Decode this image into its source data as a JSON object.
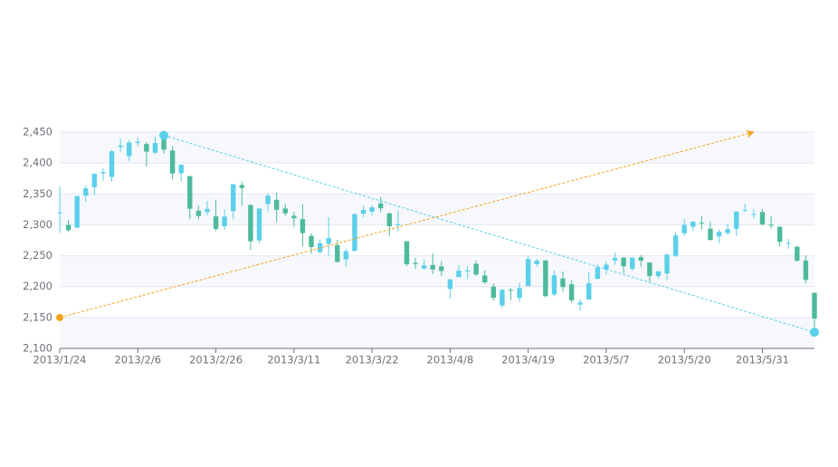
{
  "chart_data": {
    "type": "candlestick",
    "categories": [
      "2013/1/24",
      null,
      null,
      null,
      null,
      null,
      null,
      null,
      null,
      "2013/2/6",
      null,
      null,
      null,
      null,
      null,
      null,
      null,
      null,
      "2013/2/26",
      null,
      null,
      null,
      null,
      null,
      null,
      null,
      null,
      "2013/3/11",
      null,
      null,
      null,
      null,
      null,
      null,
      null,
      null,
      "2013/3/22",
      null,
      null,
      null,
      null,
      null,
      null,
      null,
      null,
      "2013/4/8",
      null,
      null,
      null,
      null,
      null,
      null,
      null,
      null,
      "2013/4/19",
      null,
      null,
      null,
      null,
      null,
      null,
      null,
      null,
      "2013/5/7",
      null,
      null,
      null,
      null,
      null,
      null,
      null,
      null,
      "2013/5/20",
      null,
      null,
      null,
      null,
      null,
      null,
      null,
      null,
      "2013/5/31",
      null,
      null,
      null,
      null,
      null,
      null
    ],
    "values": [
      [
        2320.26,
        2320.26,
        2287.3,
        2362.94
      ],
      [
        2300,
        2291.3,
        2288.26,
        2308.38
      ],
      [
        2295.35,
        2346.5,
        2295.35,
        2346.92
      ],
      [
        2347.22,
        2358.98,
        2337.35,
        2363.8
      ],
      [
        2360.75,
        2382.48,
        2347.89,
        2383.76
      ],
      [
        2383.43,
        2385.42,
        2371.23,
        2391.82
      ],
      [
        2377.41,
        2419.02,
        2369.57,
        2421.15
      ],
      [
        2425.92,
        2428.15,
        2417.58,
        2440.38
      ],
      [
        2411,
        2433.13,
        2403.3,
        2437.42
      ],
      [
        2432.68,
        2434.48,
        2427.7,
        2441.73
      ],
      [
        2430.69,
        2418.53,
        2394.22,
        2433.89
      ],
      [
        2416.62,
        2432.4,
        2414.4,
        2443.03
      ],
      [
        2441.91,
        2421.56,
        2415.43,
        2444.8
      ],
      [
        2420.26,
        2382.91,
        2373.53,
        2427.07
      ],
      [
        2383.49,
        2397.18,
        2370.61,
        2397.94
      ],
      [
        2378.82,
        2325.95,
        2309.17,
        2378.82
      ],
      [
        2322.94,
        2314.16,
        2308.76,
        2330.88
      ],
      [
        2320.62,
        2325.82,
        2315.01,
        2338.78
      ],
      [
        2313.74,
        2293.34,
        2289.89,
        2340.71
      ],
      [
        2297.77,
        2313.22,
        2292.03,
        2324.63
      ],
      [
        2322.32,
        2365.59,
        2308.92,
        2366.16
      ],
      [
        2364.54,
        2359.51,
        2330.86,
        2369.65
      ],
      [
        2332.08,
        2273.4,
        2259.25,
        2333.54
      ],
      [
        2274.81,
        2326.31,
        2270.1,
        2328.14
      ],
      [
        2333.61,
        2347.18,
        2321.6,
        2351.44
      ],
      [
        2340.44,
        2324.29,
        2304.27,
        2352.02
      ],
      [
        2326.42,
        2318.61,
        2314.59,
        2333.67
      ],
      [
        2314.68,
        2310.59,
        2296.58,
        2320.96
      ],
      [
        2309.16,
        2286.6,
        2264.83,
        2333.29
      ],
      [
        2282.17,
        2263.97,
        2253.25,
        2286.33
      ],
      [
        2255.77,
        2270.28,
        2253.31,
        2276.22
      ],
      [
        2269.31,
        2278.4,
        2250,
        2312.08
      ],
      [
        2267.29,
        2240.02,
        2239.21,
        2276.05
      ],
      [
        2244.26,
        2257.43,
        2232.02,
        2261.31
      ],
      [
        2257.74,
        2317.37,
        2257.42,
        2317.86
      ],
      [
        2318.21,
        2324.24,
        2311.6,
        2330.81
      ],
      [
        2321.4,
        2328.28,
        2314.97,
        2332
      ],
      [
        2334.74,
        2326.72,
        2319.91,
        2344.89
      ],
      [
        2318.58,
        2297.67,
        2281.12,
        2319.99
      ],
      [
        2299.38,
        2301.26,
        2289,
        2323.48
      ],
      [
        2273.55,
        2236.3,
        2232.91,
        2273.55
      ],
      [
        2238.49,
        2236.62,
        2228.81,
        2246.87
      ],
      [
        2229.46,
        2234.4,
        2227.31,
        2243.95
      ],
      [
        2234.9,
        2227.74,
        2220.44,
        2253.42
      ],
      [
        2232.69,
        2225.29,
        2217.25,
        2241.34
      ],
      [
        2196.24,
        2211.59,
        2180.67,
        2212.59
      ],
      [
        2215.47,
        2225.77,
        2215.47,
        2234.73
      ],
      [
        2224.93,
        2226.13,
        2212.56,
        2233.04
      ],
      [
        2236.98,
        2219.55,
        2217.26,
        2242.48
      ],
      [
        2218.09,
        2206.78,
        2204.44,
        2226.26
      ],
      [
        2199.91,
        2181.94,
        2177.39,
        2204.99
      ],
      [
        2169.63,
        2194.85,
        2165.78,
        2196.43
      ],
      [
        2195.03,
        2193.8,
        2178.47,
        2197.51
      ],
      [
        2181.82,
        2197.6,
        2175.44,
        2206.03
      ],
      [
        2201.12,
        2244.64,
        2200.58,
        2250.11
      ],
      [
        2236.4,
        2242.17,
        2232.26,
        2245.12
      ],
      [
        2242.62,
        2184.54,
        2182.81,
        2242.62
      ],
      [
        2187.35,
        2218.32,
        2184.11,
        2226.12
      ],
      [
        2213.19,
        2199.31,
        2191.85,
        2224.63
      ],
      [
        2203.89,
        2177.91,
        2173.86,
        2210.58
      ],
      [
        2170.78,
        2174.12,
        2161.14,
        2179.65
      ],
      [
        2179.05,
        2205.5,
        2179.05,
        2222.81
      ],
      [
        2212.5,
        2231.17,
        2212.5,
        2236.07
      ],
      [
        2227.86,
        2235.57,
        2219.44,
        2240.26
      ],
      [
        2242.39,
        2246.3,
        2235.42,
        2255.21
      ],
      [
        2246.96,
        2232.97,
        2221.38,
        2247.86
      ],
      [
        2228.82,
        2246.83,
        2225.81,
        2247.67
      ],
      [
        2247.68,
        2241.92,
        2231.36,
        2250.85
      ],
      [
        2238.9,
        2217.01,
        2205.87,
        2239.93
      ],
      [
        2217.09,
        2224.8,
        2213.58,
        2225.19
      ],
      [
        2221.34,
        2251.81,
        2210.77,
        2252.87
      ],
      [
        2249.81,
        2282.87,
        2248.41,
        2288.09
      ],
      [
        2286.33,
        2299.99,
        2281.9,
        2309.39
      ],
      [
        2297.11,
        2305.11,
        2290.12,
        2305.3
      ],
      [
        2303.75,
        2302.4,
        2292.43,
        2314.18
      ],
      [
        2293.81,
        2275.67,
        2274.1,
        2304.95
      ],
      [
        2281.45,
        2288.53,
        2270.25,
        2292.59
      ],
      [
        2286.66,
        2293.08,
        2283.94,
        2301.7
      ],
      [
        2293.4,
        2321.32,
        2281.47,
        2322.1
      ],
      [
        2323.54,
        2324.02,
        2321.17,
        2334.33
      ],
      [
        2316.25,
        2317.75,
        2310.49,
        2325.72
      ],
      [
        2320.74,
        2300.59,
        2299.37,
        2325.53
      ],
      [
        2300.21,
        2299.25,
        2294.11,
        2313.43
      ],
      [
        2297.1,
        2272.42,
        2264.76,
        2297.1
      ],
      [
        2270.71,
        2270.93,
        2260.87,
        2276.86
      ],
      [
        2264.43,
        2242.11,
        2240.07,
        2266.69
      ],
      [
        2242.26,
        2210.9,
        2205.07,
        2250.63
      ],
      [
        2190.1,
        2148.35,
        2126.22,
        2190.1
      ]
    ],
    "up_color": "#5ad0ea",
    "down_color": "#4dba9c",
    "ylim": [
      2100,
      2450
    ],
    "yticks": [
      {
        "value": 2100,
        "label": "2,100"
      },
      {
        "value": 2150,
        "label": "2,150"
      },
      {
        "value": 2200,
        "label": "2,200"
      },
      {
        "value": 2250,
        "label": "2,250"
      },
      {
        "value": 2300,
        "label": "2,300"
      },
      {
        "value": 2350,
        "label": "2,350"
      },
      {
        "value": 2400,
        "label": "2,400"
      },
      {
        "value": 2450,
        "label": "2,450"
      }
    ],
    "grid": true,
    "split_area": true,
    "mark_points": [
      {
        "type": "max",
        "color": "#5ad0ea"
      },
      {
        "type": "min",
        "color": "#5ad0ea"
      }
    ],
    "trend_line": {
      "from": [
        0,
        2150
      ],
      "to": [
        80,
        2450
      ],
      "color": "#f5a31a"
    }
  }
}
